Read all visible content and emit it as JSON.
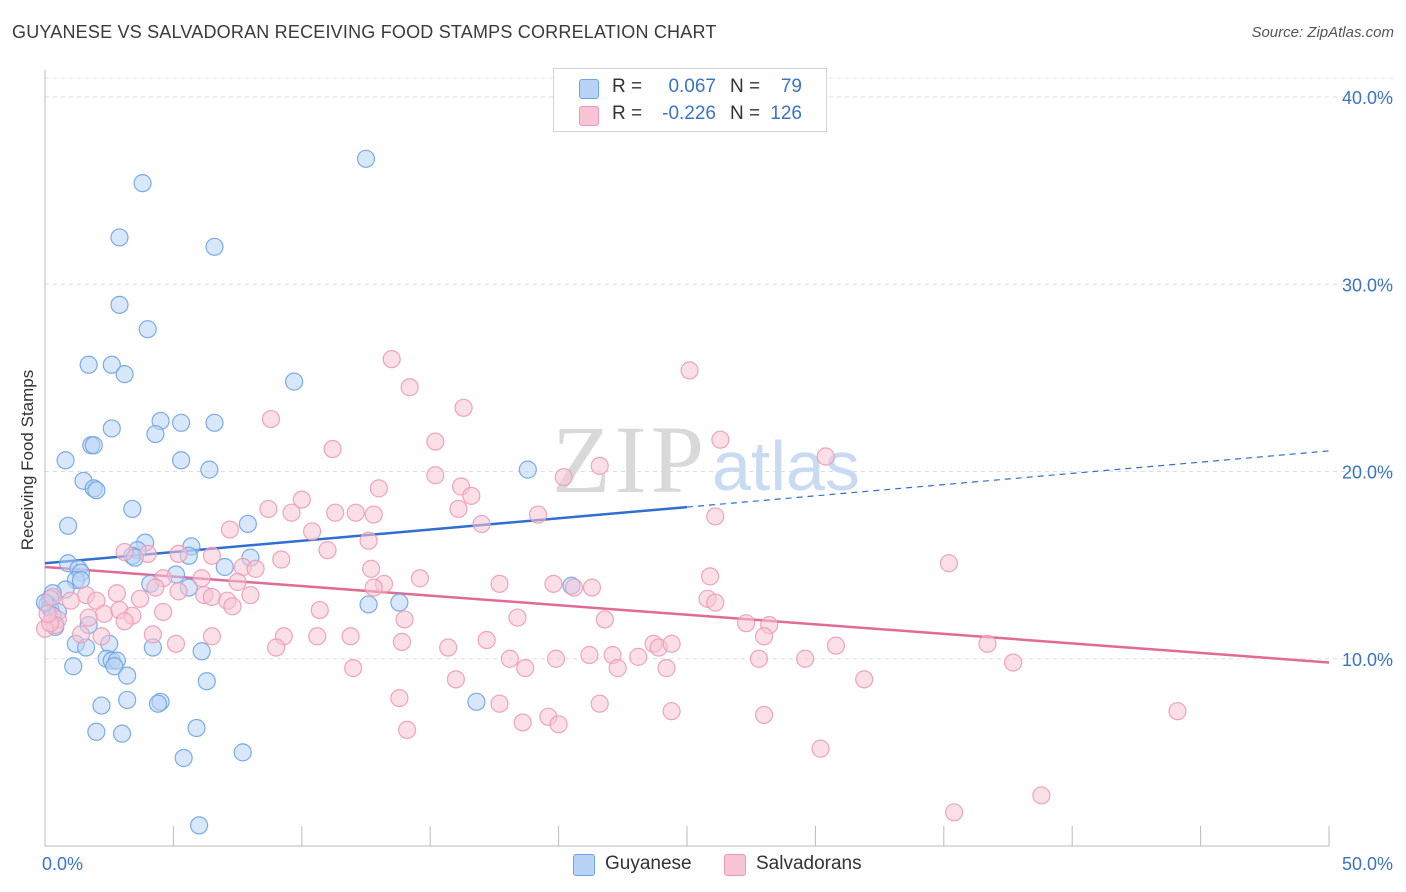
{
  "title": "GUYANESE VS SALVADORAN RECEIVING FOOD STAMPS CORRELATION CHART",
  "source": "Source: ZipAtlas.com",
  "watermark": {
    "zip": "ZIP",
    "atlas": "atlas"
  },
  "legend": {
    "rows": [
      {
        "r_label": "R =",
        "r_value": "0.067",
        "n_label": "N =",
        "n_value": "79",
        "color": "#b8d3f5"
      },
      {
        "r_label": "R =",
        "r_value": "-0.226",
        "n_label": "N =",
        "n_value": "126",
        "color": "#f7c4d4"
      }
    ]
  },
  "bottom_legend": [
    {
      "label": "Guyanese",
      "color": "#b8d3f5"
    },
    {
      "label": "Salvadorans",
      "color": "#f7c4d4"
    }
  ],
  "chart_data": {
    "type": "scatter",
    "ylabel": "Receiving Food Stamps",
    "xlim": [
      0,
      50
    ],
    "ylim": [
      0,
      41
    ],
    "x_tick_labels": [
      {
        "value": 0,
        "label": "0.0%"
      },
      {
        "value": 50,
        "label": "50.0%"
      }
    ],
    "y_tick_labels": [
      {
        "value": 10,
        "label": "10.0%"
      },
      {
        "value": 20,
        "label": "20.0%"
      },
      {
        "value": 30,
        "label": "30.0%"
      },
      {
        "value": 40,
        "label": "40.0%"
      }
    ],
    "grid": true,
    "series": [
      {
        "name": "Guyanese",
        "color": "#6fa3e6",
        "fill": "#b8d3f5",
        "trend": {
          "x0": 0,
          "y0": 15.1,
          "x1": 25,
          "y1": 18.1,
          "dash_to_x": 50,
          "dash_to_y": 21.1,
          "color": "#2f6fd0"
        },
        "points": [
          [
            12.5,
            36.7
          ],
          [
            3.8,
            35.4
          ],
          [
            2.9,
            32.5
          ],
          [
            6.6,
            32.0
          ],
          [
            2.9,
            28.9
          ],
          [
            4.0,
            27.6
          ],
          [
            1.7,
            25.7
          ],
          [
            2.6,
            25.7
          ],
          [
            3.1,
            25.2
          ],
          [
            9.7,
            24.8
          ],
          [
            4.5,
            22.7
          ],
          [
            5.3,
            22.6
          ],
          [
            6.6,
            22.6
          ],
          [
            2.6,
            22.3
          ],
          [
            4.3,
            22.0
          ],
          [
            1.8,
            21.4
          ],
          [
            1.9,
            21.4
          ],
          [
            0.8,
            20.6
          ],
          [
            5.3,
            20.6
          ],
          [
            6.4,
            20.1
          ],
          [
            18.8,
            20.1
          ],
          [
            1.5,
            19.5
          ],
          [
            1.9,
            19.1
          ],
          [
            2.0,
            19.0
          ],
          [
            3.4,
            18.0
          ],
          [
            7.9,
            17.2
          ],
          [
            0.9,
            17.1
          ],
          [
            3.9,
            16.2
          ],
          [
            5.7,
            16.0
          ],
          [
            3.6,
            15.8
          ],
          [
            3.4,
            15.5
          ],
          [
            3.5,
            15.4
          ],
          [
            5.6,
            15.5
          ],
          [
            8.0,
            15.4
          ],
          [
            0.9,
            15.1
          ],
          [
            7.0,
            14.9
          ],
          [
            1.3,
            14.8
          ],
          [
            1.4,
            14.6
          ],
          [
            1.2,
            14.2
          ],
          [
            1.4,
            14.2
          ],
          [
            5.1,
            14.5
          ],
          [
            4.1,
            14.0
          ],
          [
            5.6,
            13.8
          ],
          [
            0.8,
            13.7
          ],
          [
            0.3,
            13.5
          ],
          [
            20.5,
            13.9
          ],
          [
            0.2,
            13.2
          ],
          [
            0.1,
            12.9
          ],
          [
            0.2,
            12.7
          ],
          [
            0.5,
            12.5
          ],
          [
            0.3,
            12.3
          ],
          [
            12.6,
            12.9
          ],
          [
            13.8,
            13.0
          ],
          [
            1.7,
            11.8
          ],
          [
            0.4,
            11.7
          ],
          [
            1.2,
            10.8
          ],
          [
            2.5,
            10.8
          ],
          [
            1.6,
            10.6
          ],
          [
            4.2,
            10.6
          ],
          [
            6.1,
            10.4
          ],
          [
            2.4,
            10.0
          ],
          [
            2.6,
            9.9
          ],
          [
            2.8,
            9.9
          ],
          [
            2.7,
            9.6
          ],
          [
            1.1,
            9.6
          ],
          [
            3.2,
            9.1
          ],
          [
            6.3,
            8.8
          ],
          [
            3.2,
            7.8
          ],
          [
            4.5,
            7.7
          ],
          [
            4.4,
            7.6
          ],
          [
            2.2,
            7.5
          ],
          [
            16.8,
            7.7
          ],
          [
            5.9,
            6.3
          ],
          [
            2.0,
            6.1
          ],
          [
            3.0,
            6.0
          ],
          [
            7.7,
            5.0
          ],
          [
            5.4,
            4.7
          ],
          [
            6.0,
            1.1
          ],
          [
            0.0,
            13.0
          ]
        ]
      },
      {
        "name": "Salvadorans",
        "color": "#ee9ab6",
        "fill": "#f7c4d4",
        "trend": {
          "x0": 0,
          "y0": 14.9,
          "x1": 50,
          "y1": 9.8,
          "color": "#e06b95"
        },
        "points": [
          [
            13.5,
            26.0
          ],
          [
            25.1,
            25.4
          ],
          [
            14.2,
            24.5
          ],
          [
            16.3,
            23.4
          ],
          [
            8.8,
            22.8
          ],
          [
            15.2,
            21.6
          ],
          [
            26.3,
            21.7
          ],
          [
            11.2,
            21.2
          ],
          [
            30.4,
            20.8
          ],
          [
            15.2,
            19.8
          ],
          [
            20.2,
            19.7
          ],
          [
            21.6,
            20.3
          ],
          [
            13.0,
            19.1
          ],
          [
            16.2,
            19.2
          ],
          [
            16.6,
            18.7
          ],
          [
            10.0,
            18.5
          ],
          [
            8.7,
            18.0
          ],
          [
            16.1,
            18.0
          ],
          [
            9.6,
            17.8
          ],
          [
            11.3,
            17.8
          ],
          [
            12.1,
            17.8
          ],
          [
            12.8,
            17.7
          ],
          [
            19.2,
            17.7
          ],
          [
            26.1,
            17.6
          ],
          [
            17.0,
            17.2
          ],
          [
            7.2,
            16.9
          ],
          [
            10.4,
            16.8
          ],
          [
            12.6,
            16.3
          ],
          [
            3.1,
            15.7
          ],
          [
            4.0,
            15.6
          ],
          [
            5.2,
            15.6
          ],
          [
            6.5,
            15.5
          ],
          [
            9.2,
            15.3
          ],
          [
            11.0,
            15.8
          ],
          [
            12.7,
            14.8
          ],
          [
            7.7,
            14.9
          ],
          [
            8.2,
            14.8
          ],
          [
            35.2,
            15.1
          ],
          [
            4.6,
            14.3
          ],
          [
            6.1,
            14.3
          ],
          [
            7.5,
            14.1
          ],
          [
            14.6,
            14.3
          ],
          [
            17.7,
            14.0
          ],
          [
            19.8,
            14.0
          ],
          [
            20.6,
            13.8
          ],
          [
            21.3,
            13.8
          ],
          [
            25.9,
            14.4
          ],
          [
            13.2,
            14.0
          ],
          [
            12.8,
            13.8
          ],
          [
            4.3,
            13.8
          ],
          [
            2.8,
            13.5
          ],
          [
            1.6,
            13.4
          ],
          [
            0.3,
            13.3
          ],
          [
            1.0,
            13.1
          ],
          [
            2.0,
            13.1
          ],
          [
            3.7,
            13.2
          ],
          [
            5.2,
            13.6
          ],
          [
            6.2,
            13.4
          ],
          [
            6.5,
            13.3
          ],
          [
            7.1,
            13.1
          ],
          [
            8.0,
            13.4
          ],
          [
            25.8,
            13.2
          ],
          [
            26.1,
            13.0
          ],
          [
            7.3,
            12.8
          ],
          [
            10.7,
            12.6
          ],
          [
            4.6,
            12.5
          ],
          [
            2.3,
            12.4
          ],
          [
            2.9,
            12.6
          ],
          [
            3.4,
            12.3
          ],
          [
            3.1,
            12.0
          ],
          [
            1.7,
            12.2
          ],
          [
            0.5,
            12.1
          ],
          [
            14.0,
            12.1
          ],
          [
            18.4,
            12.2
          ],
          [
            21.8,
            12.1
          ],
          [
            27.3,
            11.9
          ],
          [
            28.2,
            11.8
          ],
          [
            9.3,
            11.2
          ],
          [
            10.6,
            11.2
          ],
          [
            11.9,
            11.2
          ],
          [
            0.4,
            11.8
          ],
          [
            1.4,
            11.3
          ],
          [
            4.2,
            11.3
          ],
          [
            6.5,
            11.2
          ],
          [
            5.1,
            10.8
          ],
          [
            17.2,
            11.0
          ],
          [
            13.9,
            10.9
          ],
          [
            23.7,
            10.8
          ],
          [
            23.9,
            10.6
          ],
          [
            24.4,
            10.8
          ],
          [
            28.0,
            11.2
          ],
          [
            30.8,
            10.7
          ],
          [
            36.7,
            10.8
          ],
          [
            9.0,
            10.6
          ],
          [
            15.7,
            10.6
          ],
          [
            18.1,
            10.0
          ],
          [
            19.9,
            10.0
          ],
          [
            21.2,
            10.2
          ],
          [
            22.1,
            10.2
          ],
          [
            23.1,
            10.1
          ],
          [
            27.8,
            10.0
          ],
          [
            29.6,
            10.0
          ],
          [
            37.7,
            9.8
          ],
          [
            12.0,
            9.5
          ],
          [
            18.7,
            9.5
          ],
          [
            22.3,
            9.5
          ],
          [
            24.2,
            9.5
          ],
          [
            16.0,
            8.9
          ],
          [
            31.9,
            8.9
          ],
          [
            13.8,
            7.9
          ],
          [
            17.7,
            7.6
          ],
          [
            21.6,
            7.6
          ],
          [
            44.1,
            7.2
          ],
          [
            24.4,
            7.2
          ],
          [
            28.0,
            7.0
          ],
          [
            19.6,
            6.9
          ],
          [
            18.6,
            6.6
          ],
          [
            20.0,
            6.5
          ],
          [
            14.1,
            6.2
          ],
          [
            30.2,
            5.2
          ],
          [
            38.8,
            2.7
          ],
          [
            35.4,
            1.8
          ],
          [
            0.0,
            11.6
          ],
          [
            0.2,
            11.9
          ],
          [
            0.1,
            12.4
          ],
          [
            2.2,
            11.2
          ]
        ]
      }
    ]
  }
}
